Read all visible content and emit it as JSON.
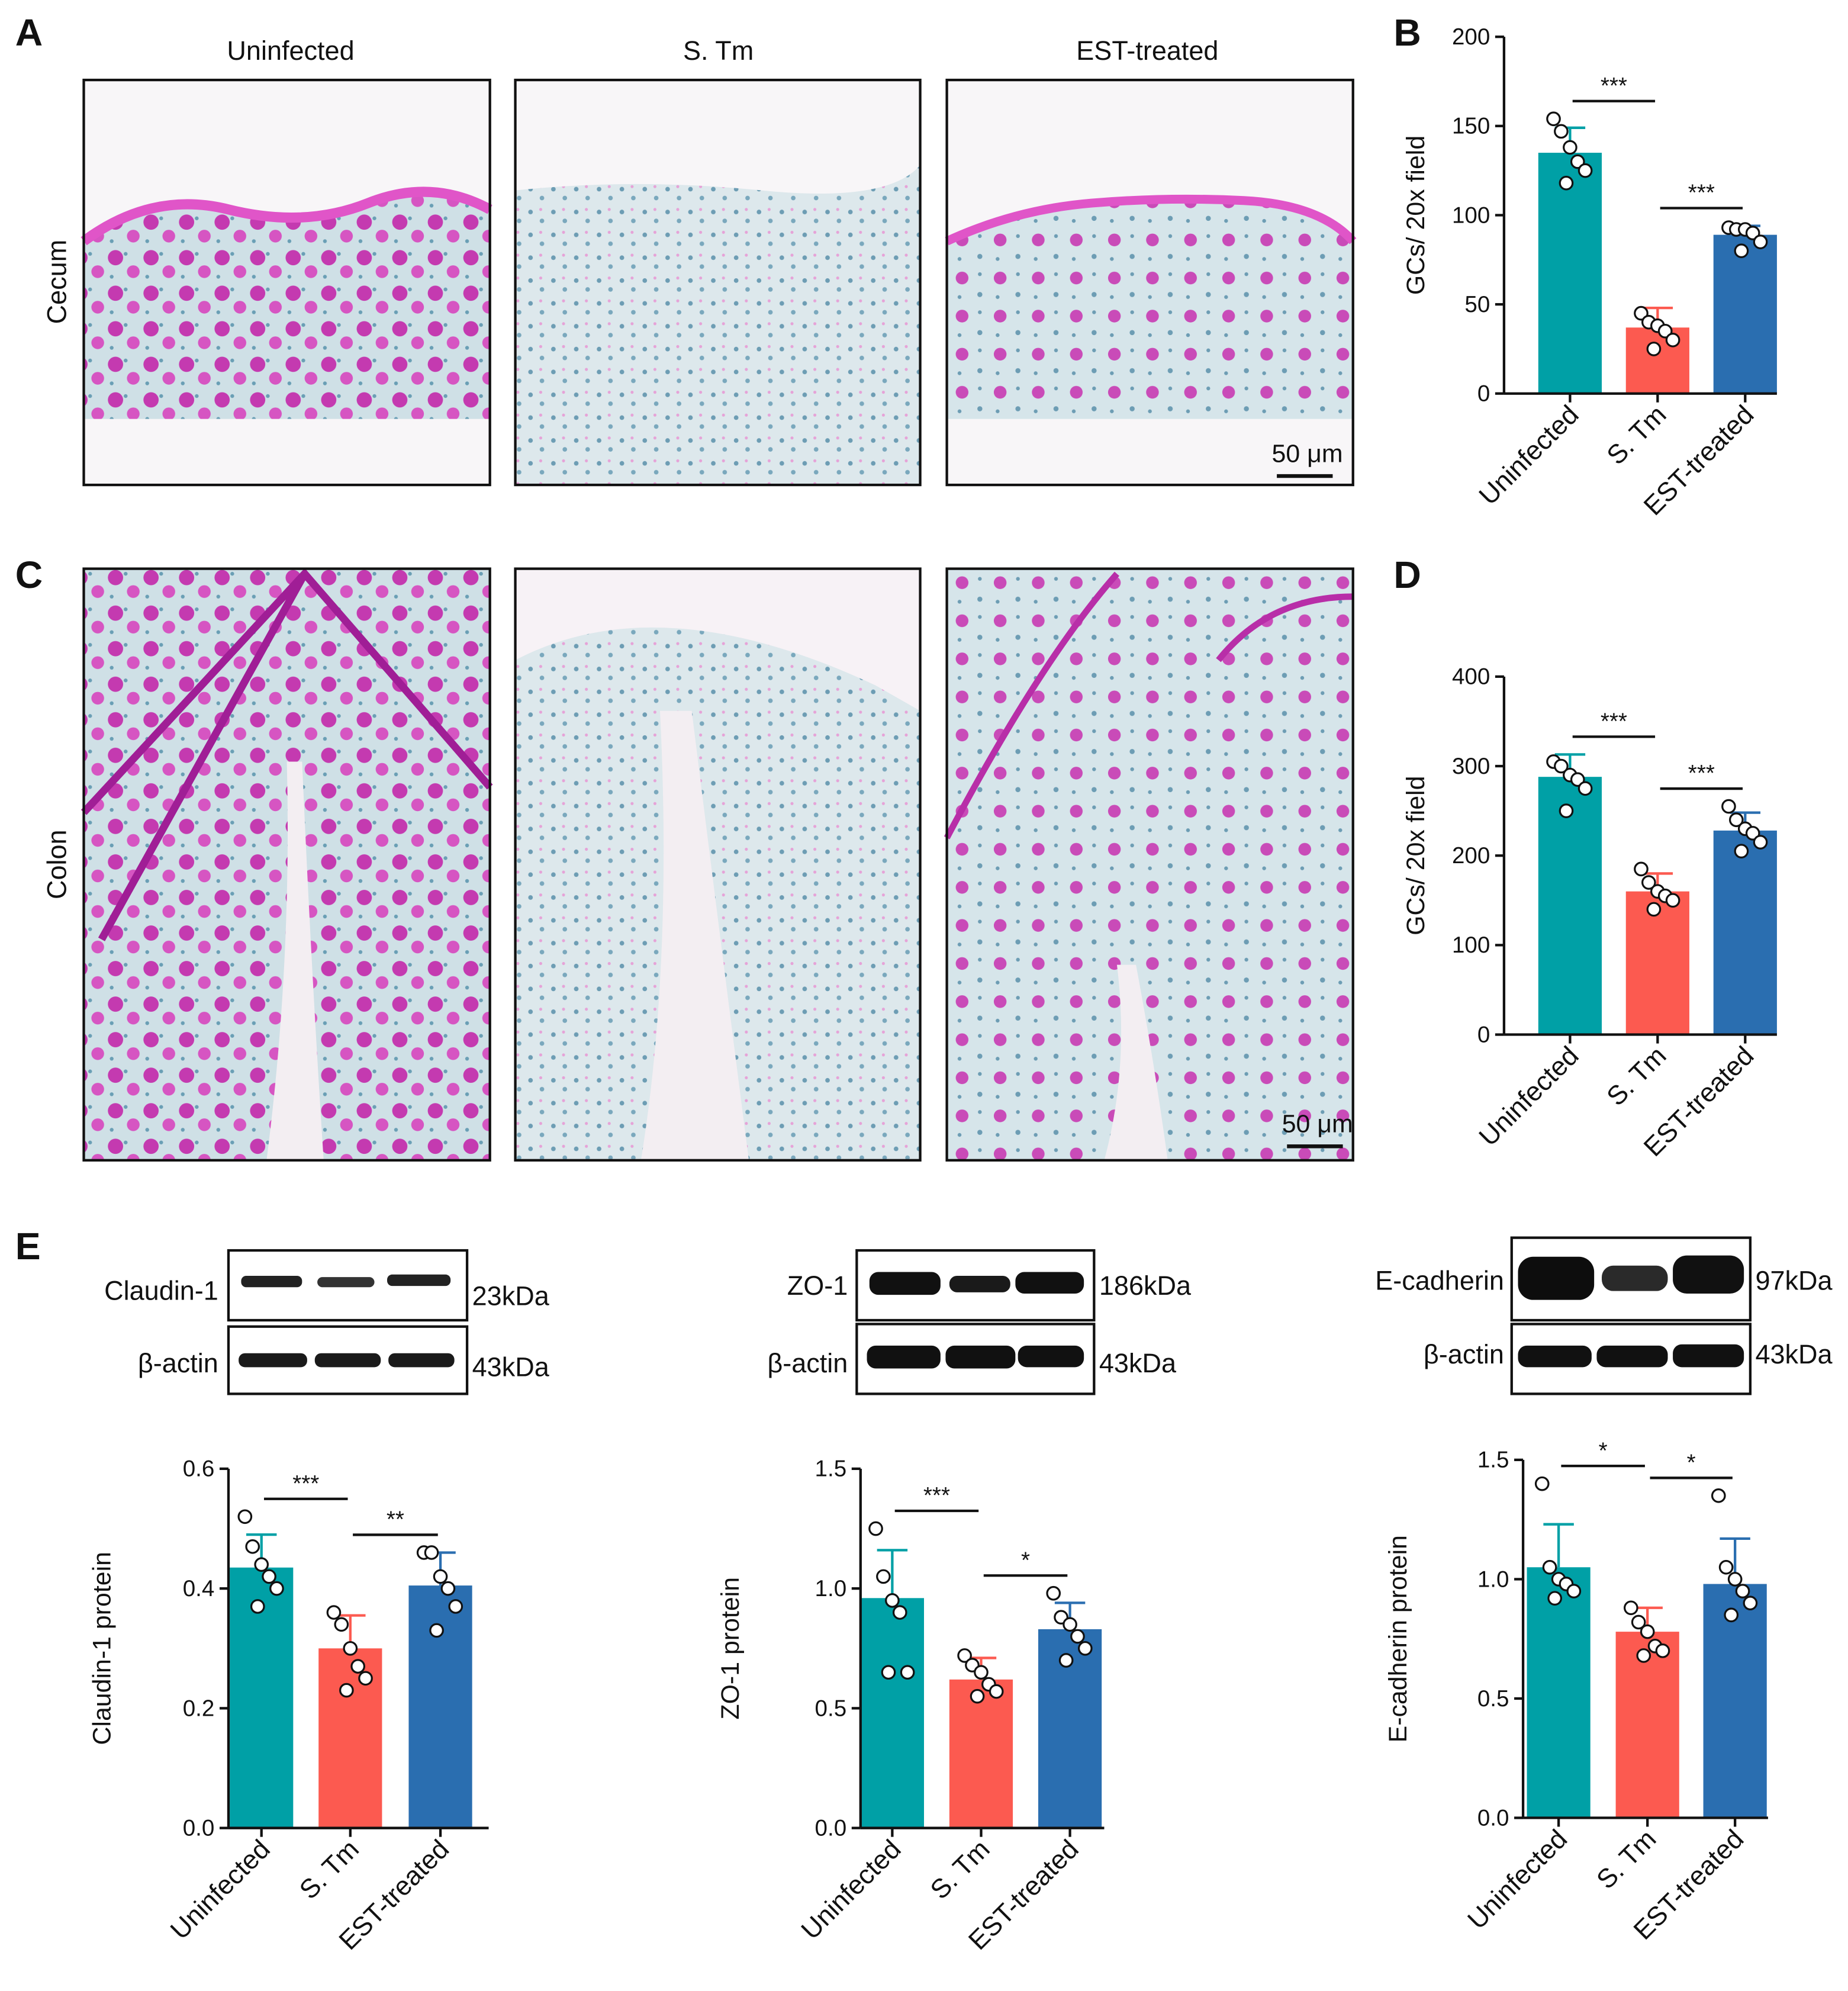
{
  "panel_labels": [
    "A",
    "B",
    "C",
    "D",
    "E"
  ],
  "histology": {
    "columns": [
      "Uninfected",
      "S. Tm",
      "EST-treated"
    ],
    "rows": [
      "Cecum",
      "Colon"
    ],
    "scale_bar": "50 μm"
  },
  "blots": [
    {
      "target": "Claudin-1",
      "target_size": "23kDa",
      "control": "β-actin",
      "control_size": "43kDa"
    },
    {
      "target": "ZO-1",
      "target_size": "186kDa",
      "control": "β-actin",
      "control_size": "43kDa"
    },
    {
      "target": "E-cadherin",
      "target_size": "97kDa",
      "control": "β-actin",
      "control_size": "43kDa"
    }
  ],
  "chart_data": [
    {
      "type": "bar",
      "y_label": "GCs/ 20x field",
      "categories": [
        "Uninfected",
        "S. Tm",
        "EST-treated"
      ],
      "colors": [
        "#00a0a6",
        "#fc5a50",
        "#2a6eb0"
      ],
      "values": [
        135,
        37,
        89
      ],
      "errors": [
        14,
        11,
        5
      ],
      "points": [
        [
          154,
          147,
          138,
          130,
          125,
          118
        ],
        [
          45,
          40,
          38,
          35,
          30,
          25
        ],
        [
          93,
          92,
          92,
          90,
          85,
          80
        ]
      ],
      "comparisons": [
        {
          "between": [
            0,
            1
          ],
          "label": "***"
        },
        {
          "between": [
            1,
            2
          ],
          "label": "***"
        }
      ],
      "ylim": [
        0,
        200
      ],
      "yticks": [
        0,
        50,
        100,
        150,
        200
      ]
    },
    {
      "type": "bar",
      "y_label": "GCs/ 20x field",
      "categories": [
        "Uninfected",
        "S. Tm",
        "EST-treated"
      ],
      "colors": [
        "#00a0a6",
        "#fc5a50",
        "#2a6eb0"
      ],
      "values": [
        288,
        160,
        228
      ],
      "errors": [
        25,
        20,
        20
      ],
      "points": [
        [
          305,
          300,
          290,
          285,
          275,
          250
        ],
        [
          185,
          170,
          160,
          155,
          150,
          140
        ],
        [
          255,
          240,
          230,
          225,
          215,
          205
        ]
      ],
      "comparisons": [
        {
          "between": [
            0,
            1
          ],
          "label": "***"
        },
        {
          "between": [
            1,
            2
          ],
          "label": "***"
        }
      ],
      "ylim": [
        0,
        400
      ],
      "yticks": [
        0,
        100,
        200,
        300,
        400
      ]
    },
    {
      "type": "bar",
      "y_label": "Claudin-1 protein",
      "categories": [
        "Uninfected",
        "S. Tm",
        "EST-treated"
      ],
      "colors": [
        "#00a0a6",
        "#fc5a50",
        "#2a6eb0"
      ],
      "values": [
        0.435,
        0.3,
        0.405
      ],
      "errors": [
        0.055,
        0.055,
        0.055
      ],
      "points": [
        [
          0.52,
          0.47,
          0.44,
          0.42,
          0.4,
          0.37
        ],
        [
          0.36,
          0.34,
          0.3,
          0.27,
          0.25,
          0.23
        ],
        [
          0.46,
          0.46,
          0.42,
          0.4,
          0.37,
          0.33
        ]
      ],
      "comparisons": [
        {
          "between": [
            0,
            1
          ],
          "label": "***"
        },
        {
          "between": [
            1,
            2
          ],
          "label": "**"
        }
      ],
      "ylim": [
        0,
        0.6
      ],
      "yticks": [
        {
          "value": 0,
          "label": "0.0"
        },
        0.2,
        0.4,
        0.6
      ]
    },
    {
      "type": "bar",
      "y_label": "ZO-1 protein",
      "categories": [
        "Uninfected",
        "S. Tm",
        "EST-treated"
      ],
      "colors": [
        "#00a0a6",
        "#fc5a50",
        "#2a6eb0"
      ],
      "values": [
        0.96,
        0.62,
        0.83
      ],
      "errors": [
        0.2,
        0.09,
        0.11
      ],
      "points": [
        [
          1.25,
          1.05,
          0.95,
          0.9,
          0.65,
          0.65
        ],
        [
          0.72,
          0.68,
          0.65,
          0.6,
          0.57,
          0.55
        ],
        [
          0.98,
          0.88,
          0.85,
          0.8,
          0.75,
          0.7
        ]
      ],
      "comparisons": [
        {
          "between": [
            0,
            1
          ],
          "label": "***"
        },
        {
          "between": [
            1,
            2
          ],
          "label": "*"
        }
      ],
      "ylim": [
        0,
        1.5
      ],
      "yticks": [
        {
          "value": 0,
          "label": "0.0"
        },
        0.5,
        {
          "value": 1,
          "label": "1.0"
        },
        1.5
      ]
    },
    {
      "type": "bar",
      "y_label": "E-cadherin protein",
      "categories": [
        "Uninfected",
        "S. Tm",
        "EST-treated"
      ],
      "colors": [
        "#00a0a6",
        "#fc5a50",
        "#2a6eb0"
      ],
      "values": [
        1.05,
        0.78,
        0.98
      ],
      "errors": [
        0.18,
        0.1,
        0.19
      ],
      "points": [
        [
          1.4,
          1.05,
          1.0,
          0.98,
          0.95,
          0.92
        ],
        [
          0.88,
          0.82,
          0.78,
          0.72,
          0.7,
          0.68
        ],
        [
          1.35,
          1.05,
          1.0,
          0.95,
          0.9,
          0.85
        ]
      ],
      "comparisons": [
        {
          "between": [
            0,
            1
          ],
          "label": "*"
        },
        {
          "between": [
            1,
            2
          ],
          "label": "*"
        }
      ],
      "ylim": [
        0,
        1.5
      ],
      "yticks": [
        {
          "value": 0,
          "label": "0.0"
        },
        0.5,
        {
          "value": 1,
          "label": "1.0"
        },
        1.5
      ]
    }
  ]
}
